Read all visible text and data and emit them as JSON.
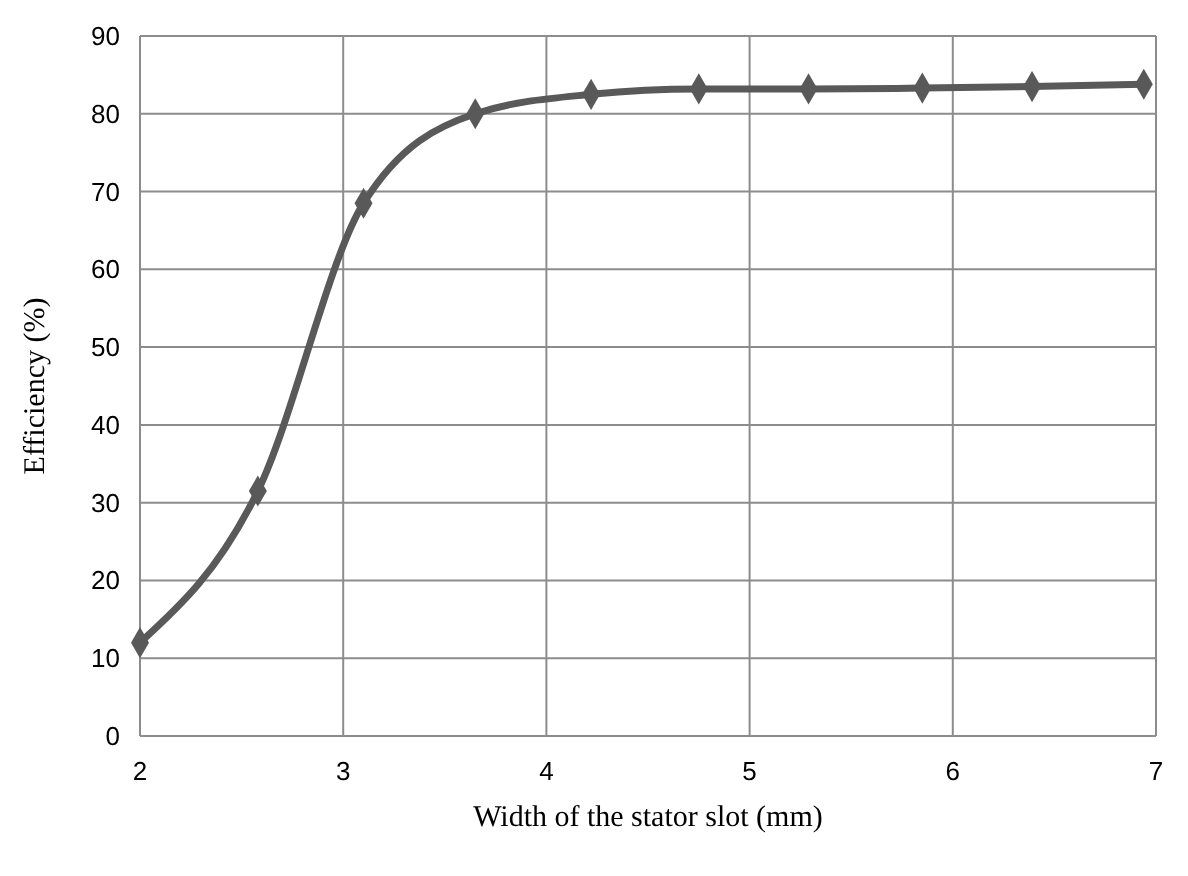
{
  "chart_data": {
    "type": "line",
    "xlabel": "Width of the stator slot (mm)",
    "ylabel": "Efficiency (%)",
    "x": [
      2,
      2.58,
      3.1,
      3.65,
      4.22,
      4.75,
      5.29,
      5.85,
      6.39,
      6.94
    ],
    "series": [
      {
        "color": "#595959",
        "values": [
          12,
          31.5,
          68.5,
          80,
          82.5,
          83.2,
          83.2,
          83.3,
          83.5,
          83.8
        ]
      }
    ],
    "xlim": [
      2,
      7
    ],
    "xticks": [
      2,
      3,
      4,
      5,
      6,
      7
    ],
    "ylim": [
      0,
      90
    ],
    "yticks": [
      0,
      10,
      20,
      30,
      40,
      50,
      60,
      70,
      80,
      90
    ],
    "grid": true,
    "marker": "diamond",
    "line_style": "solid"
  }
}
